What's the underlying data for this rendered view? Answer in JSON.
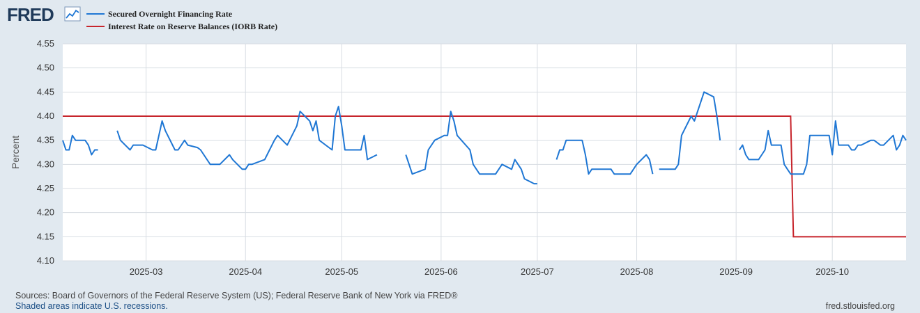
{
  "logo": {
    "text": "FRED"
  },
  "footer": {
    "sources": "Sources: Board of Governors of the Federal Reserve System (US); Federal Reserve Bank of New York via FRED®",
    "recessions": "Shaded areas indicate U.S. recessions.",
    "url": "fred.stlouisfed.org"
  },
  "colors": {
    "sofr": "#1f77d4",
    "iorb": "#c7252c",
    "background": "#e1e9f0",
    "plot": "#ffffff",
    "grid": "#d8dde3"
  },
  "chart_data": {
    "type": "line",
    "ylabel": "Percent",
    "ylim": [
      4.1,
      4.55
    ],
    "yticks": [
      "4.10",
      "4.15",
      "4.20",
      "4.25",
      "4.30",
      "4.35",
      "4.40",
      "4.45",
      "4.50",
      "4.55"
    ],
    "xlim": [
      "2025-02-03",
      "2025-10-24"
    ],
    "xticks": [
      {
        "date": "2025-03-01",
        "label": "2025-03"
      },
      {
        "date": "2025-04-01",
        "label": "2025-04"
      },
      {
        "date": "2025-05-01",
        "label": "2025-05"
      },
      {
        "date": "2025-06-01",
        "label": "2025-06"
      },
      {
        "date": "2025-07-01",
        "label": "2025-07"
      },
      {
        "date": "2025-08-01",
        "label": "2025-08"
      },
      {
        "date": "2025-09-01",
        "label": "2025-09"
      },
      {
        "date": "2025-10-01",
        "label": "2025-10"
      }
    ],
    "grid": true,
    "legend_position": "top-left",
    "series": [
      {
        "name": "Secured Overnight Financing Rate",
        "color": "#1f77d4",
        "points": [
          [
            "2025-02-03",
            4.35
          ],
          [
            "2025-02-04",
            4.33
          ],
          [
            "2025-02-05",
            4.33
          ],
          [
            "2025-02-06",
            4.36
          ],
          [
            "2025-02-07",
            4.35
          ],
          [
            "2025-02-10",
            4.35
          ],
          [
            "2025-02-11",
            4.34
          ],
          [
            "2025-02-12",
            4.32
          ],
          [
            "2025-02-13",
            4.33
          ],
          [
            "2025-02-14",
            4.33
          ],
          [
            "2025-02-17",
            null
          ],
          [
            "2025-02-20",
            4.37
          ],
          [
            "2025-02-21",
            4.35
          ],
          [
            "2025-02-24",
            4.33
          ],
          [
            "2025-02-25",
            4.34
          ],
          [
            "2025-02-26",
            4.34
          ],
          [
            "2025-02-27",
            4.34
          ],
          [
            "2025-02-28",
            4.34
          ],
          [
            "2025-03-03",
            4.33
          ],
          [
            "2025-03-04",
            4.33
          ],
          [
            "2025-03-06",
            4.39
          ],
          [
            "2025-03-07",
            4.37
          ],
          [
            "2025-03-10",
            4.33
          ],
          [
            "2025-03-11",
            4.33
          ],
          [
            "2025-03-13",
            4.35
          ],
          [
            "2025-03-14",
            4.34
          ],
          [
            "2025-03-17",
            4.335
          ],
          [
            "2025-03-18",
            4.33
          ],
          [
            "2025-03-21",
            4.3
          ],
          [
            "2025-03-24",
            4.3
          ],
          [
            "2025-03-27",
            4.32
          ],
          [
            "2025-03-28",
            4.31
          ],
          [
            "2025-03-31",
            4.29
          ],
          [
            "2025-04-01",
            4.29
          ],
          [
            "2025-04-02",
            4.3
          ],
          [
            "2025-04-03",
            4.3
          ],
          [
            "2025-04-07",
            4.31
          ],
          [
            "2025-04-10",
            4.35
          ],
          [
            "2025-04-11",
            4.36
          ],
          [
            "2025-04-14",
            4.34
          ],
          [
            "2025-04-17",
            4.38
          ],
          [
            "2025-04-18",
            4.41
          ],
          [
            "2025-04-21",
            4.39
          ],
          [
            "2025-04-22",
            4.37
          ],
          [
            "2025-04-23",
            4.39
          ],
          [
            "2025-04-24",
            4.35
          ],
          [
            "2025-04-28",
            4.33
          ],
          [
            "2025-04-29",
            4.4
          ],
          [
            "2025-04-30",
            4.42
          ],
          [
            "2025-05-01",
            4.38
          ],
          [
            "2025-05-02",
            4.33
          ],
          [
            "2025-05-05",
            4.33
          ],
          [
            "2025-05-06",
            4.33
          ],
          [
            "2025-05-07",
            4.33
          ],
          [
            "2025-05-08",
            4.36
          ],
          [
            "2025-05-09",
            4.31
          ],
          [
            "2025-05-12",
            4.32
          ],
          [
            "2025-05-13",
            null
          ],
          [
            "2025-05-21",
            4.32
          ],
          [
            "2025-05-22",
            4.3
          ],
          [
            "2025-05-23",
            4.28
          ],
          [
            "2025-05-27",
            4.29
          ],
          [
            "2025-05-28",
            4.33
          ],
          [
            "2025-05-30",
            4.35
          ],
          [
            "2025-06-02",
            4.36
          ],
          [
            "2025-06-03",
            4.36
          ],
          [
            "2025-06-04",
            4.41
          ],
          [
            "2025-06-05",
            4.39
          ],
          [
            "2025-06-06",
            4.36
          ],
          [
            "2025-06-10",
            4.33
          ],
          [
            "2025-06-11",
            4.3
          ],
          [
            "2025-06-13",
            4.28
          ],
          [
            "2025-06-16",
            4.28
          ],
          [
            "2025-06-18",
            4.28
          ],
          [
            "2025-06-20",
            4.3
          ],
          [
            "2025-06-23",
            4.29
          ],
          [
            "2025-06-24",
            4.31
          ],
          [
            "2025-06-25",
            4.3
          ],
          [
            "2025-06-26",
            4.29
          ],
          [
            "2025-06-27",
            4.27
          ],
          [
            "2025-06-30",
            4.26
          ],
          [
            "2025-07-01",
            4.26
          ],
          [
            "2025-07-02",
            null
          ],
          [
            "2025-07-07",
            4.31
          ],
          [
            "2025-07-08",
            4.33
          ],
          [
            "2025-07-09",
            4.33
          ],
          [
            "2025-07-10",
            4.35
          ],
          [
            "2025-07-11",
            4.35
          ],
          [
            "2025-07-14",
            4.35
          ],
          [
            "2025-07-15",
            4.35
          ],
          [
            "2025-07-16",
            4.32
          ],
          [
            "2025-07-17",
            4.28
          ],
          [
            "2025-07-18",
            4.29
          ],
          [
            "2025-07-21",
            4.29
          ],
          [
            "2025-07-22",
            4.29
          ],
          [
            "2025-07-23",
            4.29
          ],
          [
            "2025-07-24",
            4.29
          ],
          [
            "2025-07-25",
            4.28
          ],
          [
            "2025-07-28",
            4.28
          ],
          [
            "2025-07-29",
            4.28
          ],
          [
            "2025-07-30",
            4.28
          ],
          [
            "2025-07-31",
            4.29
          ],
          [
            "2025-08-01",
            4.3
          ],
          [
            "2025-08-04",
            4.32
          ],
          [
            "2025-08-05",
            4.31
          ],
          [
            "2025-08-06",
            4.28
          ],
          [
            "2025-08-07",
            null
          ],
          [
            "2025-08-08",
            4.29
          ],
          [
            "2025-08-11",
            4.29
          ],
          [
            "2025-08-12",
            4.29
          ],
          [
            "2025-08-13",
            4.29
          ],
          [
            "2025-08-14",
            4.3
          ],
          [
            "2025-08-15",
            4.36
          ],
          [
            "2025-08-18",
            4.4
          ],
          [
            "2025-08-19",
            4.39
          ],
          [
            "2025-08-22",
            4.45
          ],
          [
            "2025-08-25",
            4.44
          ],
          [
            "2025-08-26",
            4.4
          ],
          [
            "2025-08-27",
            4.35
          ],
          [
            "2025-08-28",
            null
          ],
          [
            "2025-09-02",
            4.33
          ],
          [
            "2025-09-03",
            4.34
          ],
          [
            "2025-09-04",
            4.32
          ],
          [
            "2025-09-05",
            4.31
          ],
          [
            "2025-09-08",
            4.31
          ],
          [
            "2025-09-09",
            4.32
          ],
          [
            "2025-09-10",
            4.33
          ],
          [
            "2025-09-11",
            4.37
          ],
          [
            "2025-09-12",
            4.34
          ],
          [
            "2025-09-15",
            4.34
          ],
          [
            "2025-09-16",
            4.3
          ],
          [
            "2025-09-17",
            4.29
          ],
          [
            "2025-09-18",
            4.28
          ],
          [
            "2025-09-19",
            4.28
          ],
          [
            "2025-09-22",
            4.28
          ],
          [
            "2025-09-23",
            4.3
          ],
          [
            "2025-09-24",
            4.36
          ],
          [
            "2025-09-25",
            4.36
          ],
          [
            "2025-09-26",
            4.36
          ],
          [
            "2025-09-29",
            4.36
          ],
          [
            "2025-09-30",
            4.36
          ],
          [
            "2025-10-01",
            4.32
          ],
          [
            "2025-10-02",
            4.39
          ],
          [
            "2025-10-03",
            4.34
          ],
          [
            "2025-10-06",
            4.34
          ],
          [
            "2025-10-07",
            4.33
          ],
          [
            "2025-10-08",
            4.33
          ],
          [
            "2025-10-09",
            4.34
          ],
          [
            "2025-10-10",
            4.34
          ],
          [
            "2025-10-13",
            4.35
          ],
          [
            "2025-10-14",
            4.35
          ],
          [
            "2025-10-15",
            4.345
          ],
          [
            "2025-10-16",
            4.34
          ],
          [
            "2025-10-17",
            4.34
          ],
          [
            "2025-10-20",
            4.36
          ],
          [
            "2025-10-21",
            4.33
          ],
          [
            "2025-10-22",
            4.34
          ],
          [
            "2025-10-23",
            4.36
          ],
          [
            "2025-10-24",
            4.35
          ]
        ]
      },
      {
        "name": "Interest Rate on Reserve Balances (IORB Rate)",
        "color": "#c7252c",
        "points": []
      }
    ]
  }
}
